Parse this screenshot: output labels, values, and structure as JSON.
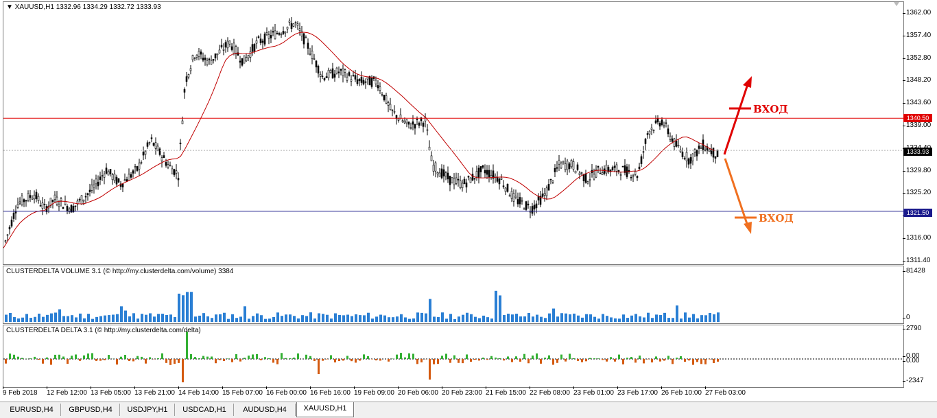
{
  "main": {
    "symbol_info": "XAUUSD,H1  1332.96 1334.29 1332.72 1333.93",
    "current_price": "1333.93",
    "resistance_label": "1340.50",
    "support_label": "1321.50",
    "resistance_price": 1340.5,
    "support_price": 1321.5,
    "entry_up_label": "ВХОД",
    "entry_down_label": "ВХОД",
    "price_ticks": [
      "1362.00",
      "1357.40",
      "1352.80",
      "1348.20",
      "1343.60",
      "1339.00",
      "1334.40",
      "1329.80",
      "1325.20",
      "1320.60",
      "1316.00",
      "1311.40"
    ],
    "colors": {
      "resistance": "#e00000",
      "support": "#1a1a8c",
      "ma": "#c00000",
      "arrow_up": "#e00000",
      "arrow_down": "#f07020",
      "current_tag": "#000000"
    }
  },
  "volume_pane": {
    "label": "CLUSTERDELTA VOLUME 3.1 (© http://my.clusterdelta.com/volume) 3384",
    "ticks": [
      "81428",
      "0"
    ],
    "bar_color": "#2a7fd4"
  },
  "delta_pane": {
    "label": "CLUSTERDELTA DELTA 3.1 (© http://my.clusterdelta.com/delta)",
    "ticks": [
      "2790",
      "0.00",
      "0.00",
      "-2347"
    ],
    "pos_color": "#33b033",
    "neg_color": "#d45a10"
  },
  "time_axis": [
    "9 Feb 2018",
    "12 Feb 12:00",
    "13 Feb 05:00",
    "13 Feb 21:00",
    "14 Feb 14:00",
    "15 Feb 07:00",
    "16 Feb 00:00",
    "16 Feb 16:00",
    "19 Feb 09:00",
    "20 Feb 06:00",
    "20 Feb 23:00",
    "21 Feb 15:00",
    "22 Feb 08:00",
    "23 Feb 01:00",
    "23 Feb 17:00",
    "26 Feb 10:00",
    "27 Feb 03:00"
  ],
  "tabs": [
    "EURUSD,H4",
    "GBPUSD,H4",
    "USDJPY,H1",
    "USDCAD,H1",
    "AUDUSD,H4",
    "XAUUSD,H1"
  ],
  "active_tab": "XAUUSD,H1"
}
